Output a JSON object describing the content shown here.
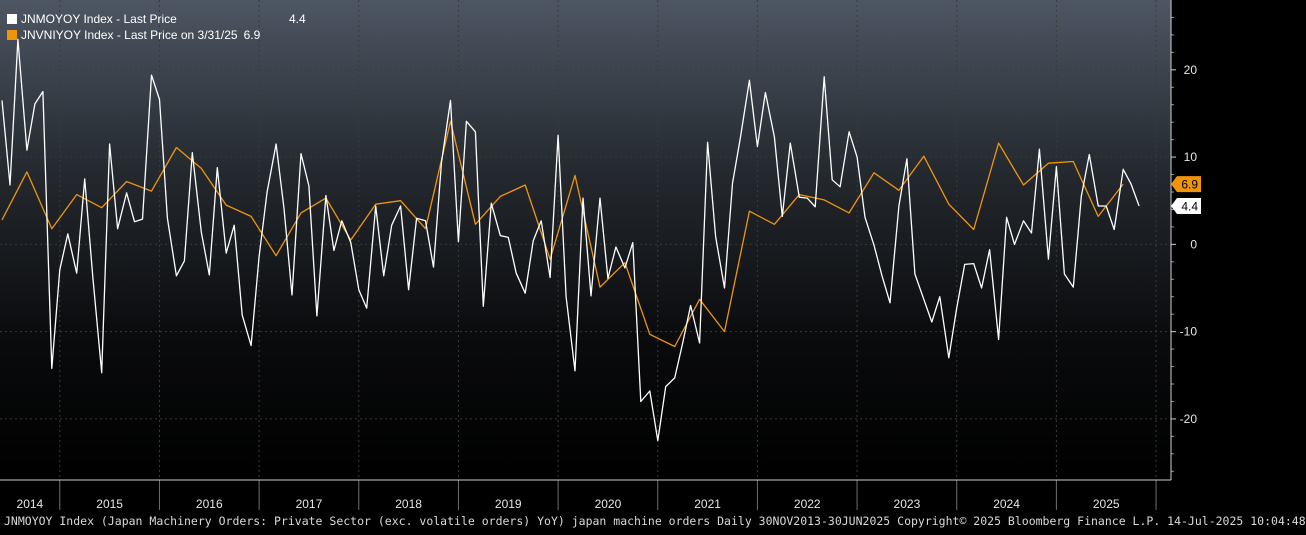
{
  "legend": {
    "series1_label": "JNMOYOY Index - Last Price",
    "series1_value": "4.4",
    "series2_label": "JNVNIYOY Index - Last Price on 3/31/25",
    "series2_value": "6.9"
  },
  "footer_text": "JNMOYOY Index (Japan Machinery Orders: Private Sector (exc. volatile orders) YoY) japan machine orders  Daily 30NOV2013-30JUN2025  Copyright© 2025 Bloomberg Finance L.P.  14-Jul-2025 10:04:48",
  "colors": {
    "background": "#000000",
    "series1": "#ffffff",
    "series2": "#f0940c",
    "grid": "#3c3c3c"
  },
  "chart_data": {
    "type": "line",
    "title": "",
    "xlabel": "",
    "ylabel": "",
    "ylim": [
      -27,
      28
    ],
    "yticks": [
      20,
      10,
      0,
      -10,
      -20
    ],
    "ytick_labels": [
      "20",
      "10",
      "0",
      "-10",
      "-20"
    ],
    "xlim": [
      2013.9,
      2025.65
    ],
    "year_labels": [
      "2014",
      "2015",
      "2016",
      "2017",
      "2018",
      "2019",
      "2020",
      "2021",
      "2022",
      "2023",
      "2024",
      "2025"
    ],
    "grid": true,
    "legend_position": "top-left",
    "last_value_tags": [
      "6.9",
      "4.4"
    ],
    "series": [
      {
        "name": "JNMOYOY Index - Last Price",
        "color": "#ffffff",
        "x": [
          2013.92,
          2014.0,
          2014.08,
          2014.17,
          2014.25,
          2014.33,
          2014.42,
          2014.5,
          2014.58,
          2014.67,
          2014.75,
          2014.83,
          2014.92,
          2015.0,
          2015.08,
          2015.17,
          2015.25,
          2015.33,
          2015.42,
          2015.5,
          2015.58,
          2015.67,
          2015.75,
          2015.83,
          2015.92,
          2016.0,
          2016.08,
          2016.17,
          2016.25,
          2016.33,
          2016.42,
          2016.5,
          2016.58,
          2016.67,
          2016.75,
          2016.83,
          2016.92,
          2017.0,
          2017.08,
          2017.17,
          2017.25,
          2017.33,
          2017.42,
          2017.5,
          2017.58,
          2017.67,
          2017.75,
          2017.83,
          2017.92,
          2018.0,
          2018.08,
          2018.17,
          2018.25,
          2018.33,
          2018.42,
          2018.5,
          2018.58,
          2018.67,
          2018.75,
          2018.83,
          2018.92,
          2019.0,
          2019.08,
          2019.17,
          2019.25,
          2019.33,
          2019.42,
          2019.5,
          2019.58,
          2019.67,
          2019.75,
          2019.83,
          2019.92,
          2020.0,
          2020.08,
          2020.17,
          2020.25,
          2020.33,
          2020.42,
          2020.5,
          2020.58,
          2020.67,
          2020.75,
          2020.83,
          2020.92,
          2021.0,
          2021.08,
          2021.17,
          2021.25,
          2021.33,
          2021.42,
          2021.5,
          2021.58,
          2021.67,
          2021.75,
          2021.83,
          2021.92,
          2022.0,
          2022.08,
          2022.17,
          2022.25,
          2022.33,
          2022.42,
          2022.5,
          2022.58,
          2022.67,
          2022.75,
          2022.83,
          2022.92,
          2023.0,
          2023.08,
          2023.17,
          2023.25,
          2023.33,
          2023.42,
          2023.5,
          2023.58,
          2023.67,
          2023.75,
          2023.83,
          2023.92,
          2024.0,
          2024.08,
          2024.17,
          2024.25,
          2024.33,
          2024.42,
          2024.5,
          2024.58,
          2024.67,
          2024.75,
          2024.83,
          2024.92,
          2025.0,
          2025.08,
          2025.17,
          2025.25,
          2025.33
        ],
        "values": [
          16.5,
          6.8,
          23.5,
          10.8,
          16.1,
          17.5,
          -14.2,
          -2.9,
          1.2,
          -3.3,
          7.5,
          -3.6,
          -14.7,
          11.5,
          1.8,
          5.9,
          2.6,
          2.9,
          19.4,
          16.6,
          3.0,
          -3.6,
          -1.9,
          10.5,
          1.4,
          -3.5,
          8.8,
          -1.0,
          2.2,
          -8.1,
          -11.6,
          -1.4,
          6.0,
          11.5,
          4.1,
          -5.8,
          10.4,
          6.7,
          -8.2,
          5.6,
          -0.7,
          2.7,
          0.2,
          -5.2,
          -7.3,
          4.4,
          -3.6,
          2.2,
          4.4,
          -5.2,
          3.0,
          2.7,
          -2.6,
          9.4,
          16.5,
          0.3,
          14.1,
          12.9,
          -7.1,
          4.7,
          1.0,
          0.8,
          -3.3,
          -5.6,
          0.4,
          2.7,
          -3.8,
          12.5,
          -6.0,
          -14.5,
          5.3,
          -5.9,
          5.3,
          -3.9,
          -0.3,
          -2.7,
          0.2,
          -18.0,
          -16.8,
          -22.5,
          -16.3,
          -15.3,
          -11.3,
          -7.0,
          -11.3,
          11.7,
          0.9,
          -5.0,
          7.0,
          12.3,
          18.8,
          11.2,
          17.4,
          12.3,
          3.2,
          11.6,
          5.4,
          5.3,
          4.3,
          19.2,
          7.4,
          6.6,
          12.9,
          10.0,
          3.1,
          -0.1,
          -3.6,
          -6.7,
          4.4,
          9.8,
          -3.4,
          -6.3,
          -8.9,
          -6.0,
          -13.0,
          -7.3,
          -2.3,
          -2.2,
          -5.0,
          -0.6,
          -10.9,
          3.1,
          0.0,
          2.7,
          1.3,
          10.9,
          -1.7,
          8.9,
          -3.4,
          -4.9,
          5.5,
          10.3,
          4.4,
          4.4,
          1.7,
          8.6,
          6.9,
          4.4
        ]
      },
      {
        "name": "JNVNIYOY Index - Last Price on 3/31/25",
        "color": "#f0940c",
        "x": [
          2013.92,
          2014.17,
          2014.42,
          2014.67,
          2014.92,
          2015.17,
          2015.42,
          2015.67,
          2015.92,
          2016.17,
          2016.42,
          2016.67,
          2016.92,
          2017.17,
          2017.42,
          2017.67,
          2017.92,
          2018.17,
          2018.42,
          2018.67,
          2018.92,
          2019.17,
          2019.42,
          2019.67,
          2019.92,
          2020.17,
          2020.42,
          2020.67,
          2020.92,
          2021.17,
          2021.42,
          2021.67,
          2021.92,
          2022.17,
          2022.42,
          2022.67,
          2022.92,
          2023.17,
          2023.42,
          2023.67,
          2023.92,
          2024.17,
          2024.42,
          2024.67,
          2024.92,
          2025.17
        ],
        "values": [
          2.8,
          8.3,
          1.8,
          5.7,
          4.2,
          7.2,
          6.1,
          11.1,
          8.7,
          4.5,
          3.2,
          -1.3,
          3.6,
          5.3,
          0.5,
          4.6,
          5.0,
          1.8,
          14.1,
          2.3,
          5.5,
          6.8,
          -1.7,
          7.9,
          -4.9,
          -2.1,
          -10.3,
          -11.7,
          -6.3,
          -10.0,
          3.8,
          2.3,
          5.7,
          5.1,
          3.6,
          8.2,
          6.2,
          10.1,
          4.6,
          1.7,
          11.6,
          6.8,
          9.3,
          9.5,
          3.2,
          6.9
        ]
      }
    ]
  }
}
